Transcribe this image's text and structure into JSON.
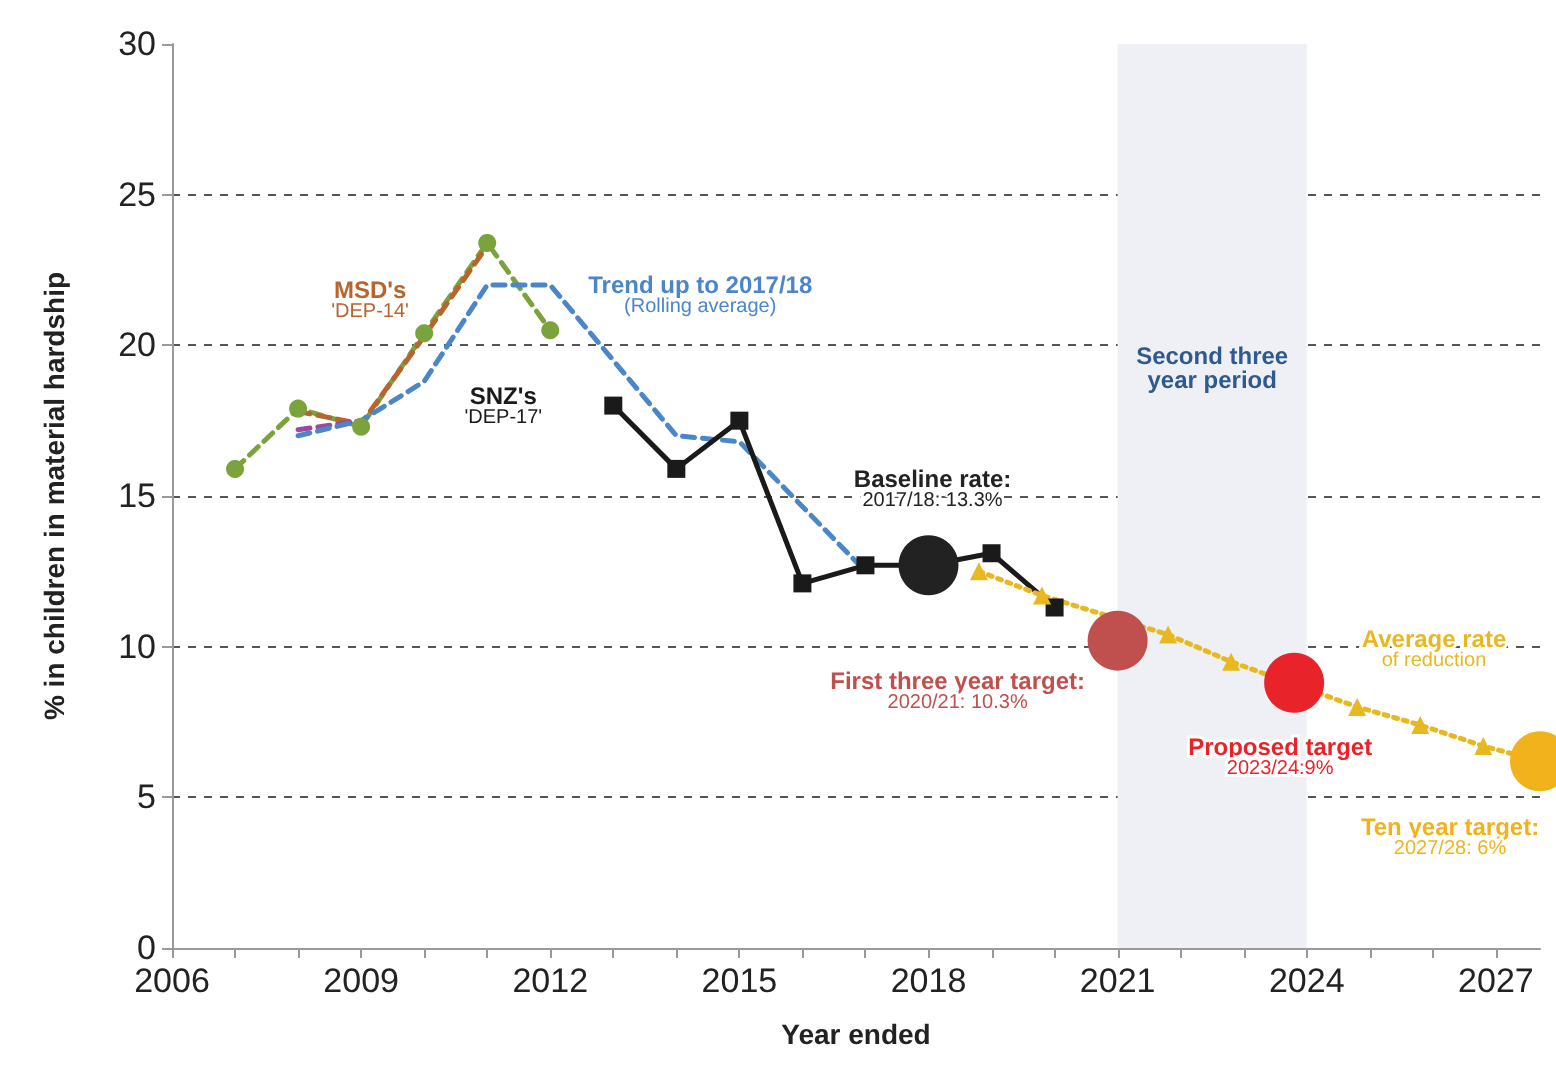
{
  "chart_data": {
    "type": "line",
    "xlabel": "Year ended",
    "ylabel": "% in children in material hardship",
    "xlim": [
      2006,
      2027.7
    ],
    "ylim": [
      0,
      30
    ],
    "xticks": [
      2006,
      {
        "value": 2007,
        "label": null
      },
      {
        "value": 2008,
        "label": null
      },
      2009,
      {
        "value": 2010,
        "label": null
      },
      {
        "value": 2011,
        "label": null
      },
      2012,
      {
        "value": 2013,
        "label": null
      },
      {
        "value": 2014,
        "label": null
      },
      2015,
      {
        "value": 2016,
        "label": null
      },
      {
        "value": 2017,
        "label": null
      },
      2018,
      {
        "value": 2019,
        "label": null
      },
      {
        "value": 2020,
        "label": null
      },
      2021,
      {
        "value": 2022,
        "label": null
      },
      {
        "value": 2023,
        "label": null
      },
      2024,
      {
        "value": 2025,
        "label": null
      },
      {
        "value": 2026,
        "label": null
      },
      2027
    ],
    "yticks": [
      0,
      5,
      10,
      15,
      20,
      25,
      30
    ],
    "grid": "y",
    "bands": [
      {
        "axis": "x",
        "from": 2021,
        "to": 2024,
        "label": "Second three\nyear period",
        "color": "#eef0f5"
      }
    ],
    "series": [
      {
        "color": "#7aa33c",
        "line_style": "dashed",
        "marker": "circle",
        "x": [
          2007,
          2008,
          2009,
          2010,
          2011,
          2012
        ],
        "values": [
          15.9,
          17.9,
          17.3,
          20.4,
          23.4,
          20.5
        ]
      },
      {
        "name": "MSD's\n'DEP-14'",
        "color": "#b8642e",
        "line_style": "dashed",
        "marker": "none",
        "x": [
          2008,
          2009,
          2010,
          2011
        ],
        "values": [
          17.8,
          17.4,
          20.3,
          23.3
        ]
      },
      {
        "color": "#9b4aa0",
        "line_style": "dashed",
        "marker": "none",
        "x": [
          2008,
          2009
        ],
        "values": [
          17.2,
          17.5
        ]
      },
      {
        "name": "Trend up to 2017/18\n(Rolling average)",
        "color": "#4a86c8",
        "line_style": "dashed",
        "marker": "none",
        "x": [
          2008,
          2009,
          2010,
          2011,
          2012,
          2014,
          2015,
          2017
        ],
        "values": [
          17,
          17.5,
          18.8,
          22,
          22,
          17,
          16.8,
          12.5
        ]
      },
      {
        "name": "SNZ's\n'DEP-17'",
        "color": "#1a1a1a",
        "line_style": "solid",
        "marker": "square",
        "x": [
          2013,
          2014,
          2015,
          2016,
          2017,
          2018,
          2019,
          2020
        ],
        "values": [
          18,
          15.9,
          17.5,
          12.1,
          12.7,
          12.7,
          13.1,
          11.3
        ]
      },
      {
        "name": "Average rate\nof reduction",
        "color": "#e8b820",
        "line_style": "dotted",
        "marker": "triangle",
        "x": [
          2018.8,
          2019.8,
          2021.8,
          2022.8,
          2024.8,
          2025.8,
          2026.8,
          2027.7
        ],
        "values": [
          12.5,
          11.7,
          10.4,
          9.5,
          8.0,
          7.4,
          6.7,
          6.2
        ]
      },
      {
        "type": "scatter",
        "marker": "circle",
        "colors": [
          "#222222",
          "#c0504d",
          "#e8242a",
          "#f2b21c"
        ],
        "x": [
          2018,
          2021,
          2023.8,
          2027.7
        ],
        "values": [
          12.7,
          10.2,
          8.8,
          6.2
        ],
        "value_labels": [
          "Baseline rate:\n2017/18: 13.3%",
          "First three year target:\n2020/21: 10.3%",
          "Proposed target\n2023/24:9%",
          "Ten year target:\n2027/28: 6%"
        ]
      }
    ]
  }
}
